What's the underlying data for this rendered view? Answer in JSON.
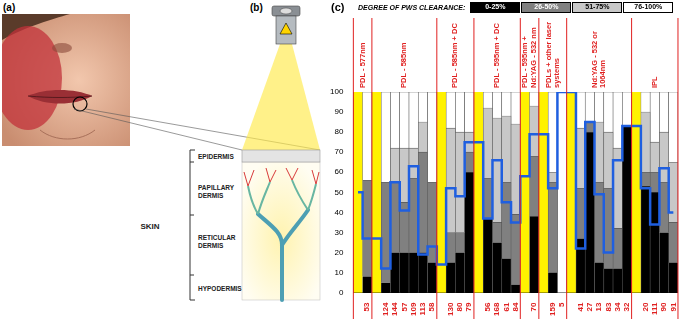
{
  "panel_a": {
    "label": "(a)"
  },
  "panel_b": {
    "label": "(b)",
    "bracket_label": "SKIN",
    "layers": [
      "EPIDERMIS",
      "PAPILLARY DERMIS",
      "RETICULAR DERMIS",
      "HYPODERMIS"
    ]
  },
  "chart_data": {
    "type": "bar",
    "panel_label": "(c)",
    "legend_title": "DEGREE OF PWS CLEARANCE:",
    "legend": "top",
    "stacked": true,
    "grid": false,
    "groups": [
      "PDL - 577nm",
      "PDL - 585nm",
      "PDL - 585nm + DC",
      "PDL - 595nm + DC",
      "PDL - 595nm + Nd:YAG - 532 nm",
      "PDLs + other laser systems",
      "Nd:YAG - 532 or 1064nm",
      "IPL"
    ],
    "categories": [
      null,
      "53",
      null,
      "124",
      "144",
      "57",
      "109",
      "113",
      "58",
      null,
      "130",
      "80",
      "79",
      null,
      "56",
      "168",
      "61",
      "84",
      null,
      "70",
      null,
      "159",
      "5",
      null,
      "41",
      "27",
      "13",
      "83",
      "34",
      "32",
      null,
      "20",
      "111",
      "90",
      "91"
    ],
    "ylim": [
      0,
      100
    ],
    "yticks": [
      0,
      10,
      20,
      30,
      40,
      50,
      60,
      70,
      80,
      90,
      100
    ],
    "series": [
      {
        "name": "0-25%",
        "color": "#000000",
        "values": [
          null,
          8,
          null,
          5,
          20,
          20,
          20,
          20,
          15,
          null,
          15,
          20,
          60,
          null,
          37,
          25,
          17,
          4,
          null,
          38,
          null,
          10,
          0,
          null,
          27,
          80,
          15,
          12,
          12,
          83,
          null,
          53,
          50,
          30,
          15
        ]
      },
      {
        "name": "26-50%",
        "color": "#808080",
        "values": [
          null,
          48,
          null,
          50,
          35,
          25,
          37,
          50,
          40,
          null,
          15,
          10,
          10,
          null,
          20,
          10,
          38,
          35,
          null,
          30,
          null,
          45,
          0,
          null,
          25,
          5,
          40,
          40,
          20,
          0,
          null,
          7,
          10,
          25,
          20
        ]
      },
      {
        "name": "51-75%",
        "color": "#c8c8c8",
        "values": [
          null,
          0,
          null,
          0,
          17,
          27,
          15,
          15,
          0,
          null,
          52,
          50,
          10,
          null,
          35,
          52,
          33,
          45,
          null,
          25,
          null,
          5,
          0,
          null,
          30,
          0,
          30,
          28,
          40,
          0,
          null,
          30,
          15,
          25,
          30
        ]
      },
      {
        "name": "76-100%",
        "color": "#ffffff",
        "values": [
          null,
          44,
          null,
          45,
          28,
          28,
          28,
          15,
          45,
          null,
          18,
          20,
          20,
          null,
          8,
          13,
          12,
          16,
          null,
          7,
          null,
          40,
          100,
          null,
          18,
          15,
          15,
          20,
          28,
          17,
          null,
          10,
          25,
          20,
          35
        ]
      },
      {
        "type": "line",
        "color": "#1f5fe0",
        "line_style": "step",
        "values": [
          50,
          27,
          27,
          12,
          55,
          41,
          63,
          19,
          23,
          14,
          52,
          48,
          75,
          75,
          37,
          66,
          45,
          35,
          58,
          79,
          79,
          52,
          100,
          100,
          22,
          85,
          49,
          20,
          66,
          83,
          83,
          52,
          34,
          62,
          40
        ]
      }
    ]
  }
}
